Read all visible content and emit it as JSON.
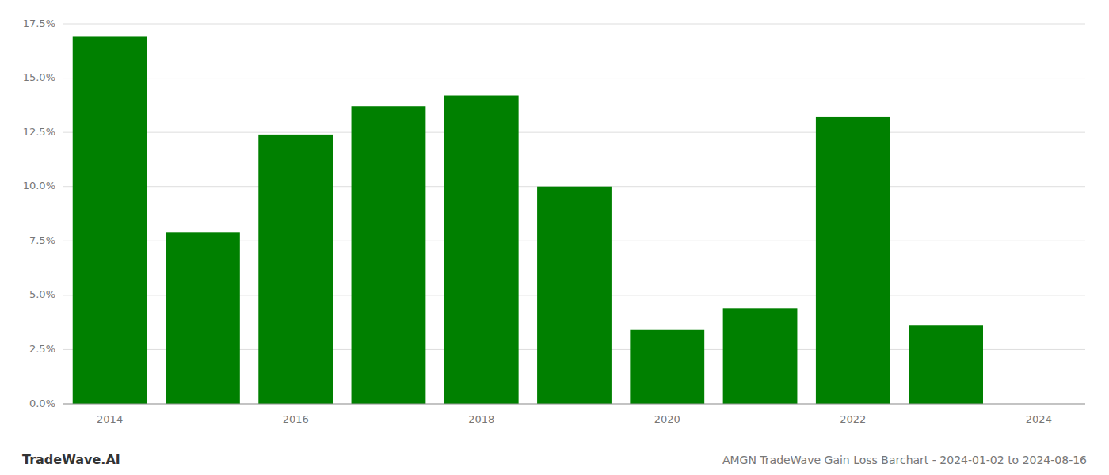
{
  "chart_data": {
    "type": "bar",
    "title": "AMGN TradeWave Gain Loss Barchart - 2024-01-02 to 2024-08-16",
    "annotations": [
      "TradeWave.AI"
    ],
    "x": [
      2014,
      2015,
      2016,
      2017,
      2018,
      2019,
      2020,
      2021,
      2022,
      2023,
      2024
    ],
    "values": [
      0.169,
      0.079,
      0.124,
      0.137,
      0.142,
      0.1,
      0.034,
      0.044,
      0.132,
      0.036,
      0.0
    ],
    "color": "#008000",
    "xlim": [
      2013.5,
      2024.5
    ],
    "xticks": [
      2014,
      2016,
      2018,
      2020,
      2022,
      2024
    ],
    "ylim": [
      0,
      0.175
    ],
    "yticks": [
      {
        "value": 0.0,
        "label": "0.0%"
      },
      {
        "value": 0.025,
        "label": "2.5%"
      },
      {
        "value": 0.05,
        "label": "5.0%"
      },
      {
        "value": 0.075,
        "label": "7.5%"
      },
      {
        "value": 0.1,
        "label": "10.0%"
      },
      {
        "value": 0.125,
        "label": "12.5%"
      },
      {
        "value": 0.15,
        "label": "15.0%"
      },
      {
        "value": 0.175,
        "label": "17.5%"
      }
    ],
    "grid": true
  }
}
